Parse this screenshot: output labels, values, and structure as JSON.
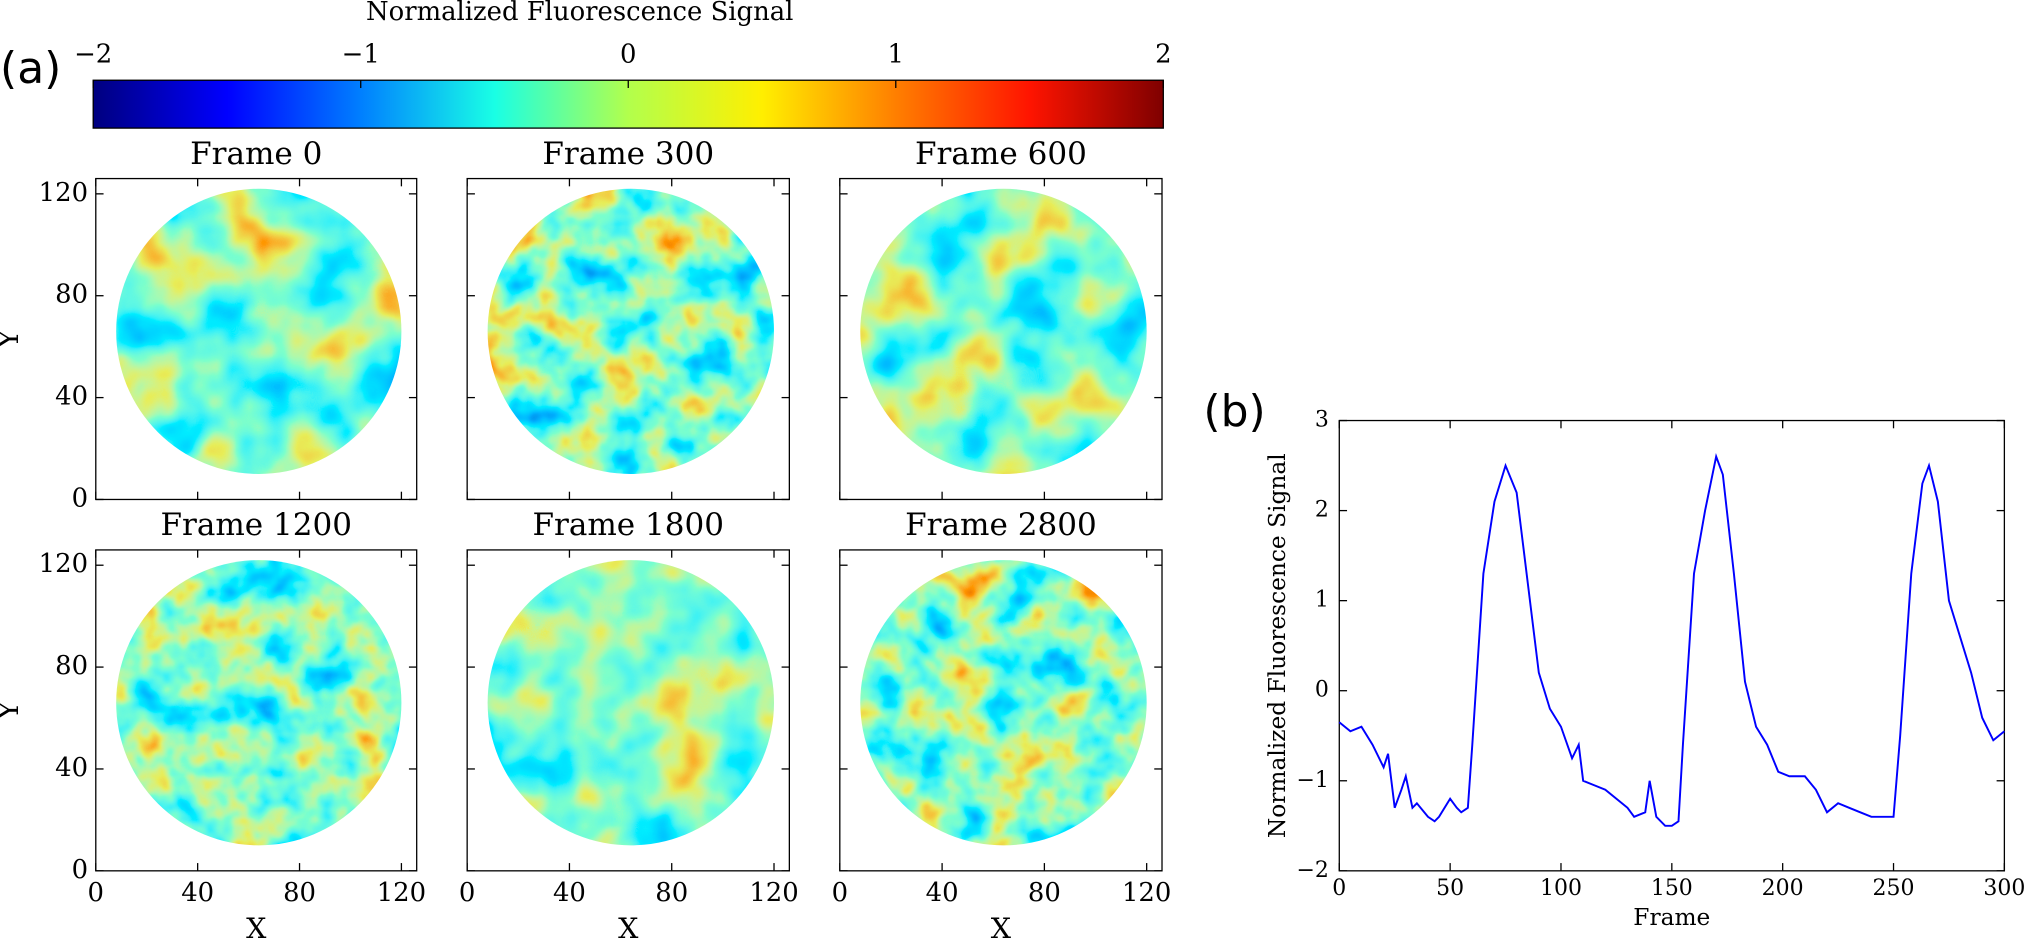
{
  "chart_data": [
    {
      "type": "colorbar",
      "panel_label": "(a)",
      "title": "Normalized Fluorescence Signal",
      "clim": [
        -2,
        2
      ],
      "ticks": [
        {
          "value": -2,
          "label": "−2"
        },
        {
          "value": -1,
          "label": "−1"
        },
        0,
        1,
        2
      ],
      "colors": [
        "#00007f",
        "#0000ff",
        "#007fff",
        "#19ffe5",
        "#b2ff4c",
        "#ffef00",
        "#ff7f00",
        "#ff1400",
        "#7f0000"
      ]
    },
    {
      "type": "heatmap",
      "title": "Frame 0",
      "xlim": [
        0,
        126
      ],
      "ylim": [
        0,
        126
      ],
      "xticks": [
        0,
        40,
        80,
        120
      ],
      "yticks": [
        0,
        40,
        80,
        120
      ],
      "show_xticklabels": false,
      "show_yticklabels": true,
      "ylabel": "Y"
    },
    {
      "type": "heatmap",
      "title": "Frame 300",
      "xlim": [
        0,
        126
      ],
      "ylim": [
        0,
        126
      ],
      "xticks": [
        0,
        40,
        80,
        120
      ],
      "yticks": [
        0,
        40,
        80,
        120
      ],
      "show_xticklabels": false,
      "show_yticklabels": false
    },
    {
      "type": "heatmap",
      "title": "Frame 600",
      "xlim": [
        0,
        126
      ],
      "ylim": [
        0,
        126
      ],
      "xticks": [
        0,
        40,
        80,
        120
      ],
      "yticks": [
        0,
        40,
        80,
        120
      ],
      "show_xticklabels": false,
      "show_yticklabels": false
    },
    {
      "type": "heatmap",
      "title": "Frame 1200",
      "xlim": [
        0,
        126
      ],
      "ylim": [
        0,
        126
      ],
      "xticks": [
        0,
        40,
        80,
        120
      ],
      "yticks": [
        0,
        40,
        80,
        120
      ],
      "show_xticklabels": true,
      "show_yticklabels": true,
      "xlabel": "X",
      "ylabel": "Y"
    },
    {
      "type": "heatmap",
      "title": "Frame 1800",
      "xlim": [
        0,
        126
      ],
      "ylim": [
        0,
        126
      ],
      "xticks": [
        0,
        40,
        80,
        120
      ],
      "yticks": [
        0,
        40,
        80,
        120
      ],
      "show_xticklabels": true,
      "show_yticklabels": false,
      "xlabel": "X"
    },
    {
      "type": "heatmap",
      "title": "Frame 2800",
      "xlim": [
        0,
        126
      ],
      "ylim": [
        0,
        126
      ],
      "xticks": [
        0,
        40,
        80,
        120
      ],
      "yticks": [
        0,
        40,
        80,
        120
      ],
      "show_xticklabels": true,
      "show_yticklabels": false,
      "xlabel": "X"
    },
    {
      "type": "line",
      "panel_label": "(b)",
      "xlabel": "Frame",
      "ylabel": "Normalized Fluorescence Signal",
      "xlim": [
        0,
        300
      ],
      "ylim": [
        -2,
        3
      ],
      "xticks": [
        0,
        50,
        100,
        150,
        200,
        250,
        300
      ],
      "yticks": [
        {
          "value": -2,
          "label": "−2"
        },
        {
          "value": -1,
          "label": "−1"
        },
        0,
        1,
        2,
        3
      ],
      "x": [
        0,
        5,
        10,
        15,
        20,
        22,
        25,
        28,
        30,
        33,
        35,
        40,
        43,
        45,
        50,
        53,
        55,
        58,
        60,
        65,
        70,
        75,
        80,
        85,
        90,
        95,
        100,
        105,
        108,
        110,
        115,
        120,
        125,
        130,
        133,
        138,
        140,
        143,
        147,
        150,
        153,
        155,
        160,
        165,
        170,
        173,
        178,
        183,
        188,
        193,
        198,
        203,
        210,
        215,
        220,
        225,
        230,
        235,
        240,
        245,
        250,
        253,
        258,
        263,
        266,
        270,
        275,
        280,
        285,
        290,
        295,
        300
      ],
      "series": [
        {
          "color": "#0000ff",
          "values": [
            -0.35,
            -0.45,
            -0.4,
            -0.6,
            -0.85,
            -0.7,
            -1.3,
            -1.1,
            -0.95,
            -1.3,
            -1.25,
            -1.4,
            -1.45,
            -1.4,
            -1.2,
            -1.3,
            -1.35,
            -1.3,
            -0.6,
            1.3,
            2.1,
            2.5,
            2.2,
            1.2,
            0.2,
            -0.2,
            -0.4,
            -0.75,
            -0.6,
            -1.0,
            -1.05,
            -1.1,
            -1.2,
            -1.3,
            -1.4,
            -1.35,
            -1.0,
            -1.4,
            -1.5,
            -1.5,
            -1.45,
            -0.6,
            1.3,
            2.0,
            2.6,
            2.4,
            1.3,
            0.1,
            -0.4,
            -0.6,
            -0.9,
            -0.95,
            -0.95,
            -1.1,
            -1.35,
            -1.25,
            -1.3,
            -1.35,
            -1.4,
            -1.4,
            -1.4,
            -0.5,
            1.3,
            2.3,
            2.5,
            2.1,
            1.0,
            0.6,
            0.2,
            -0.3,
            -0.55,
            -0.45
          ]
        }
      ]
    }
  ]
}
